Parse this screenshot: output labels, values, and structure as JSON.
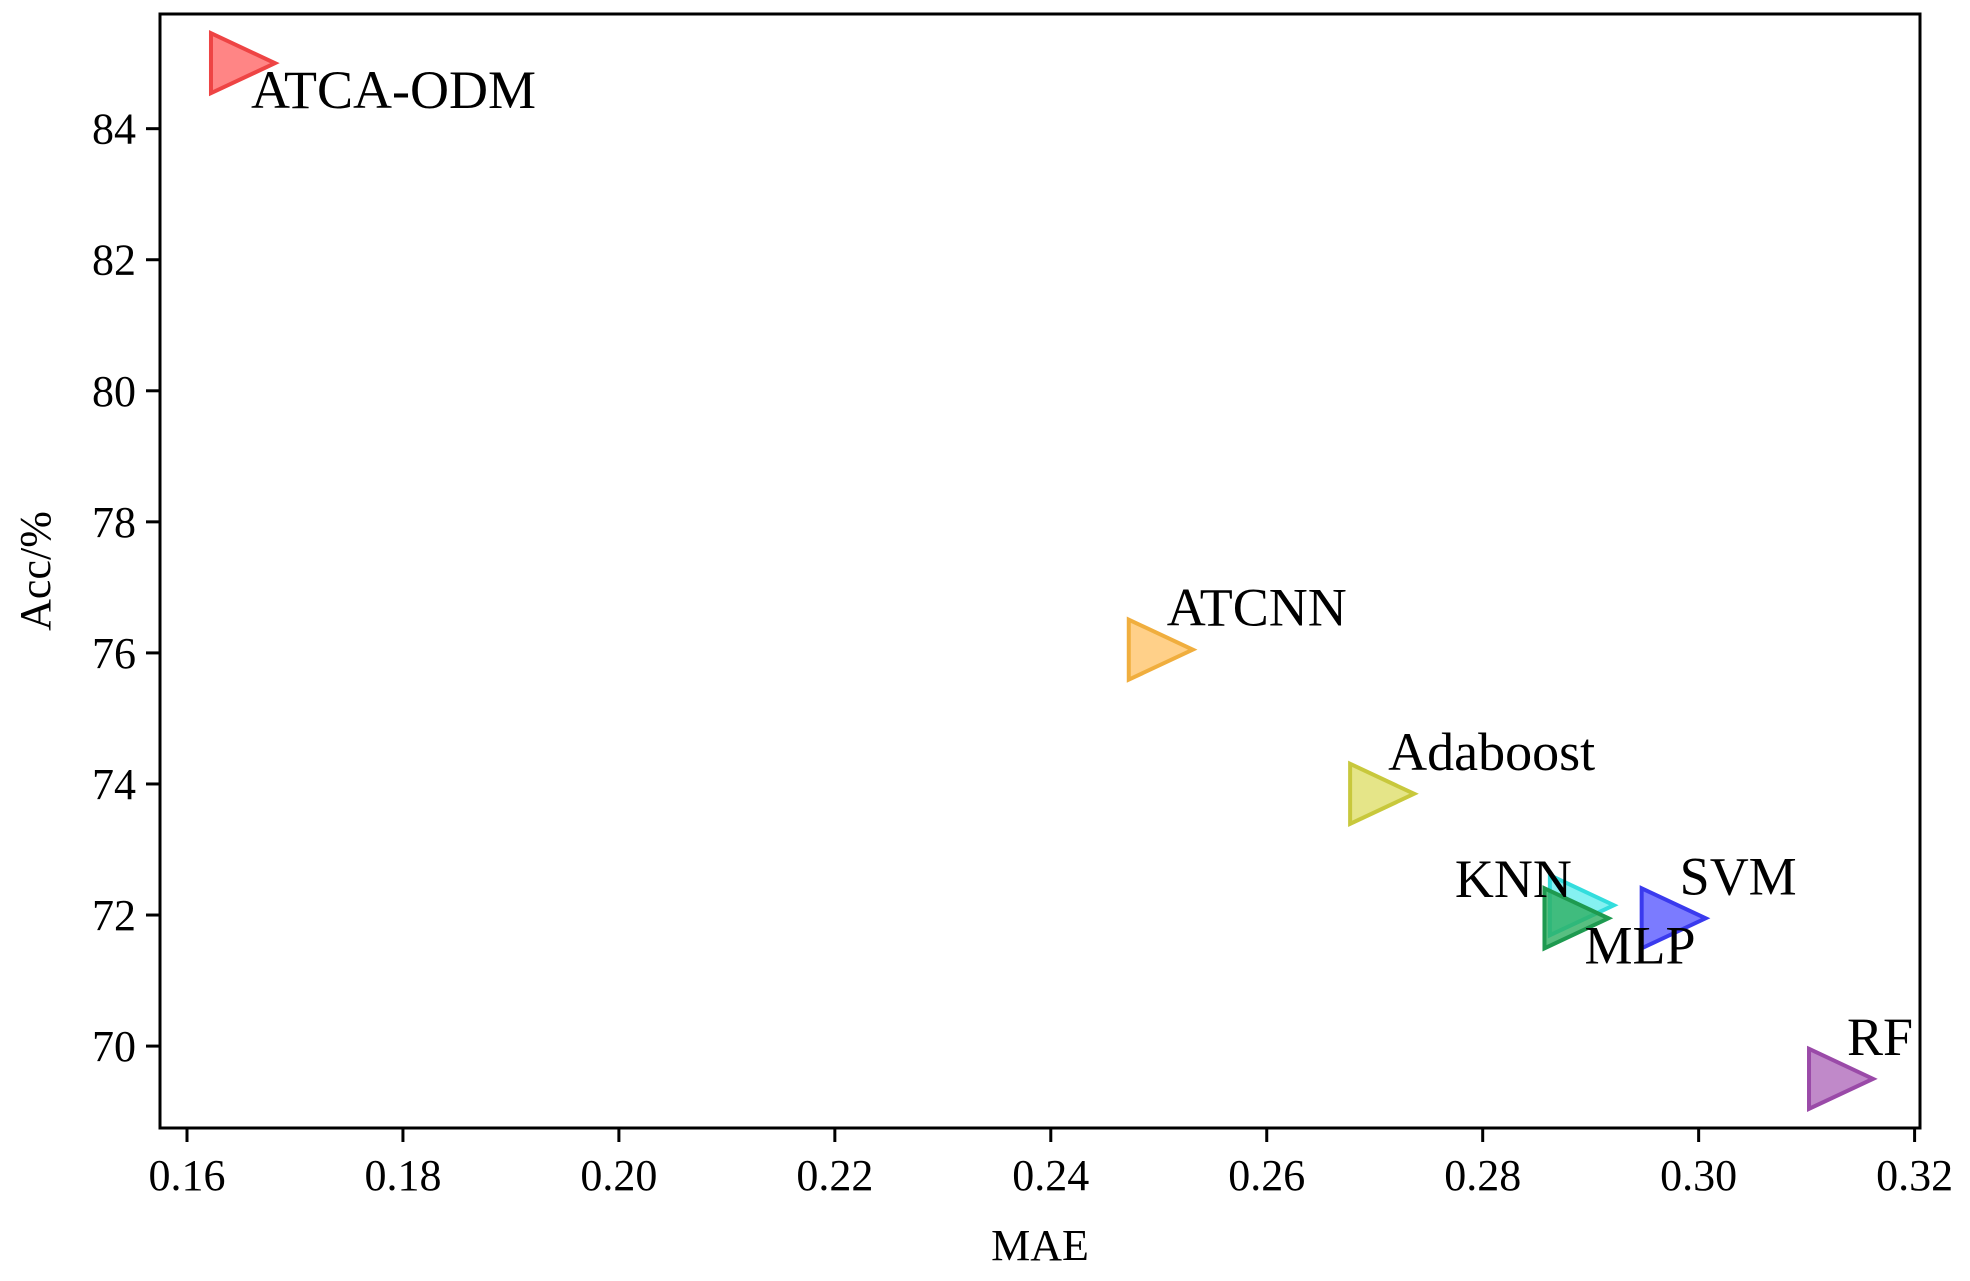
{
  "chart_data": {
    "type": "scatter",
    "title": "",
    "xlabel": "MAE",
    "ylabel": "Acc/%",
    "xlim": [
      0.1575,
      0.3205
    ],
    "ylim": [
      68.75,
      85.75
    ],
    "xticks": [
      0.16,
      0.18,
      0.2,
      0.22,
      0.24,
      0.26,
      0.28,
      0.3,
      0.32
    ],
    "xtick_labels": [
      "0.16",
      "0.18",
      "0.20",
      "0.22",
      "0.24",
      "0.26",
      "0.28",
      "0.30",
      "0.32"
    ],
    "yticks": [
      70,
      72,
      74,
      76,
      78,
      80,
      82,
      84
    ],
    "ytick_labels": [
      "70",
      "72",
      "74",
      "76",
      "78",
      "80",
      "82",
      "84"
    ],
    "grid": false,
    "legend": "none",
    "marker": "triangle-right",
    "series": [
      {
        "name": "ATCA-ODM",
        "x": 0.165,
        "y": 85.0,
        "color": "#ff6666",
        "edge": "#ee4444",
        "label_pos": "below-right"
      },
      {
        "name": "ATCNN",
        "x": 0.25,
        "y": 76.05,
        "color": "#ffc46b",
        "edge": "#f0ae3e",
        "label_pos": "above-right"
      },
      {
        "name": "Adaboost",
        "x": 0.2705,
        "y": 73.85,
        "color": "#dede6a",
        "edge": "#c8c83c",
        "label_pos": "above-right"
      },
      {
        "name": "KNN",
        "x": 0.289,
        "y": 72.15,
        "color": "#66eeee",
        "edge": "#33dddd",
        "label_pos": "above-left"
      },
      {
        "name": "MLP",
        "x": 0.2885,
        "y": 71.95,
        "color": "#2eaf62",
        "edge": "#1e9a50",
        "label_pos": "below-right"
      },
      {
        "name": "SVM",
        "x": 0.2975,
        "y": 71.95,
        "color": "#5a5aff",
        "edge": "#3a3aee",
        "label_pos": "above-right"
      },
      {
        "name": "RF",
        "x": 0.313,
        "y": 69.5,
        "color": "#b06cbc",
        "edge": "#9a4aa8",
        "label_pos": "above-right"
      }
    ]
  }
}
